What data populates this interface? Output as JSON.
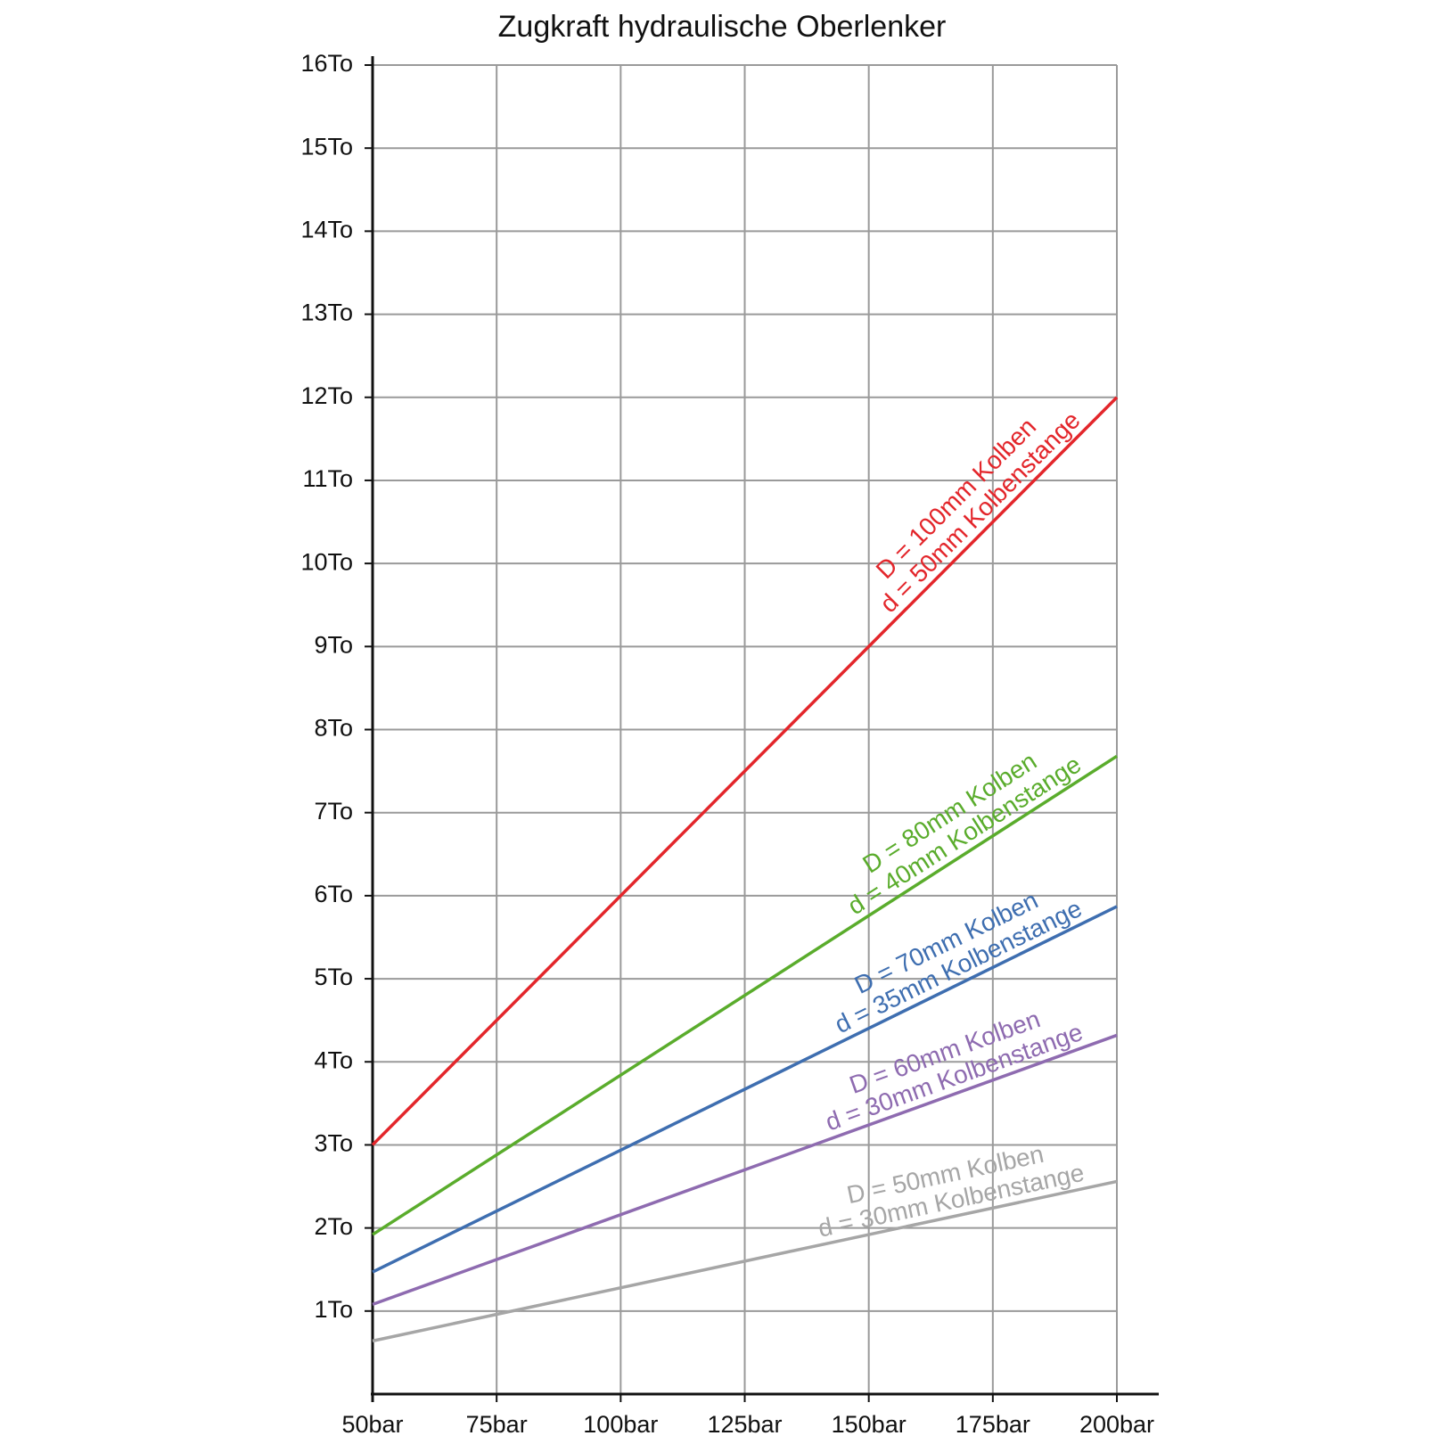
{
  "chart_data": {
    "type": "line",
    "title": "Zugkraft hydraulische Oberlenker",
    "x": [
      50,
      200
    ],
    "xlim": [
      50,
      200
    ],
    "xticks": [
      {
        "value": 50,
        "label": "50bar"
      },
      {
        "value": 75,
        "label": "75bar"
      },
      {
        "value": 100,
        "label": "100bar"
      },
      {
        "value": 125,
        "label": "125bar"
      },
      {
        "value": 150,
        "label": "150bar"
      },
      {
        "value": 175,
        "label": "175bar"
      },
      {
        "value": 200,
        "label": "200bar"
      }
    ],
    "ylim": [
      0,
      16
    ],
    "yticks": [
      {
        "value": 1,
        "label": "1To"
      },
      {
        "value": 2,
        "label": "2To"
      },
      {
        "value": 3,
        "label": "3To"
      },
      {
        "value": 4,
        "label": "4To"
      },
      {
        "value": 5,
        "label": "5To"
      },
      {
        "value": 6,
        "label": "6To"
      },
      {
        "value": 7,
        "label": "7To"
      },
      {
        "value": 8,
        "label": "8To"
      },
      {
        "value": 9,
        "label": "9To"
      },
      {
        "value": 10,
        "label": "10To"
      },
      {
        "value": 11,
        "label": "11To"
      },
      {
        "value": 12,
        "label": "12To"
      },
      {
        "value": 13,
        "label": "13To"
      },
      {
        "value": 14,
        "label": "14To"
      },
      {
        "value": 15,
        "label": "15To"
      },
      {
        "value": 16,
        "label": "16To"
      }
    ],
    "grid": true,
    "series": [
      {
        "color": "#e3262b",
        "values": [
          3,
          12
        ],
        "label_lines": [
          "D = 100mm Kolben",
          "d = 50mm Kolbenstange"
        ]
      },
      {
        "color": "#5aac2c",
        "values": [
          1.92,
          7.68
        ],
        "label_lines": [
          "D = 80mm Kolben",
          "d = 40mm Kolbenstange"
        ]
      },
      {
        "color": "#3e6eb0",
        "values": [
          1.47,
          5.87
        ],
        "label_lines": [
          "D = 70mm Kolben",
          "d = 35mm Kolbenstange"
        ]
      },
      {
        "color": "#8e6bb0",
        "values": [
          1.08,
          4.32
        ],
        "label_lines": [
          "D = 60mm Kolben",
          "d = 30mm Kolbenstange"
        ]
      },
      {
        "color": "#a6a6a6",
        "values": [
          0.64,
          2.56
        ],
        "label_lines": [
          "D = 50mm Kolben",
          "d = 30mm Kolbenstange"
        ]
      }
    ]
  }
}
